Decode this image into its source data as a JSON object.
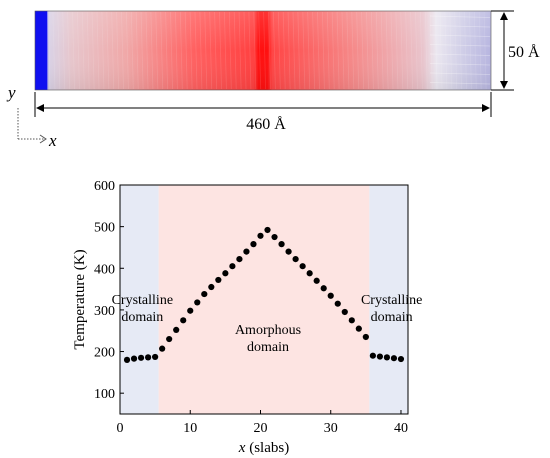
{
  "simulation_box": {
    "length_label": "460 Å",
    "height_label": "50 Å",
    "y_axis_label": "y",
    "x_axis_label": "x",
    "colors": {
      "crystal_end": "#1e1eff",
      "amorphous_core": "#ff3030",
      "amorphous_hot": "#ff0000"
    }
  },
  "chart_data": {
    "type": "scatter",
    "xlabel_symbol": "x",
    "xlabel_rest": " (slabs)",
    "ylabel": "Temperature (K)",
    "xlim": [
      0,
      41
    ],
    "ylim": [
      50,
      600
    ],
    "xticks": [
      0,
      10,
      20,
      30,
      40
    ],
    "yticks": [
      100,
      200,
      300,
      400,
      500,
      600
    ],
    "regions": [
      {
        "x0": 0,
        "x1": 5.5,
        "label": [
          "Crystalline",
          "domain"
        ],
        "color": "#e6eaf5"
      },
      {
        "x0": 5.5,
        "x1": 35.5,
        "label": [
          "Amorphous",
          "domain"
        ],
        "color": "#fde4e2"
      },
      {
        "x0": 35.5,
        "x1": 41,
        "label": [
          "Crystalline",
          "domain"
        ],
        "color": "#e6eaf5"
      }
    ],
    "x": [
      1,
      2,
      3,
      4,
      5,
      6,
      7,
      8,
      9,
      10,
      11,
      12,
      13,
      14,
      15,
      16,
      17,
      18,
      19,
      20,
      21,
      22,
      23,
      24,
      25,
      26,
      27,
      28,
      29,
      30,
      31,
      32,
      33,
      34,
      35,
      36,
      37,
      38,
      39,
      40
    ],
    "y": [
      180,
      183,
      185,
      186,
      187,
      207,
      230,
      252,
      275,
      298,
      318,
      338,
      355,
      372,
      388,
      405,
      422,
      440,
      458,
      478,
      492,
      475,
      458,
      440,
      422,
      405,
      388,
      370,
      352,
      334,
      315,
      295,
      275,
      255,
      235,
      190,
      188,
      186,
      184,
      182
    ]
  }
}
